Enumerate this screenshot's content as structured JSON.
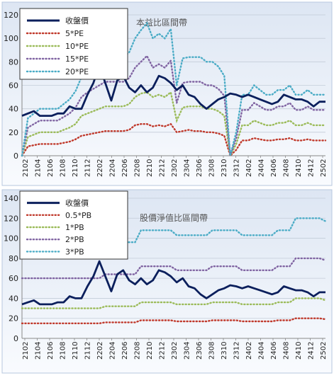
{
  "chart_data": [
    {
      "type": "line",
      "title": "本益比區間帶",
      "xlabel": "",
      "ylabel": "",
      "ylim": [
        0,
        120
      ],
      "ytick_step": 20,
      "legend_placement": "top-left",
      "x_tick_labels": [
        "2102",
        "2104",
        "2106",
        "2108",
        "2110",
        "2112",
        "2202",
        "2204",
        "2206",
        "2208",
        "2210",
        "2212",
        "2302",
        "2304",
        "2306",
        "2308",
        "2310",
        "2312",
        "2402",
        "2404",
        "2406",
        "2408",
        "2410",
        "2412",
        "2502"
      ],
      "series": [
        {
          "name": "收盤價",
          "color": "#0b1f5c",
          "style": "solid",
          "values": [
            34,
            36,
            38,
            34,
            34,
            34,
            36,
            36,
            42,
            40,
            40,
            52,
            62,
            77,
            62,
            47,
            64,
            68,
            58,
            54,
            60,
            54,
            58,
            68,
            66,
            62,
            56,
            60,
            52,
            50,
            44,
            40,
            44,
            48,
            50,
            53,
            52,
            50,
            52,
            50,
            48,
            46,
            44,
            46,
            52,
            50,
            48,
            48,
            46,
            42,
            46,
            46
          ]
        },
        {
          "name": "5*PE",
          "color": "#c0392b",
          "style": "dotted",
          "values": [
            0,
            8,
            9,
            10,
            10,
            10,
            10,
            11,
            12,
            14,
            17,
            18,
            19,
            20,
            21,
            21,
            21,
            21,
            22,
            26,
            27,
            27,
            25,
            26,
            25,
            27,
            20,
            21,
            22,
            21,
            21,
            20,
            20,
            19,
            17,
            0,
            5,
            13,
            13,
            15,
            14,
            13,
            13,
            14,
            14,
            15,
            13,
            13,
            14,
            13,
            13,
            13
          ]
        },
        {
          "name": "10*PE",
          "color": "#9bbb59",
          "style": "dotted",
          "values": [
            0,
            16,
            18,
            20,
            20,
            20,
            20,
            22,
            24,
            27,
            34,
            36,
            38,
            40,
            42,
            42,
            42,
            42,
            44,
            50,
            53,
            54,
            50,
            52,
            50,
            54,
            30,
            41,
            42,
            42,
            42,
            40,
            40,
            38,
            34,
            0,
            10,
            26,
            26,
            30,
            28,
            26,
            26,
            28,
            28,
            30,
            26,
            26,
            28,
            26,
            26,
            26
          ]
        },
        {
          "name": "15*PE",
          "color": "#8064a2",
          "style": "dotted",
          "values": [
            0,
            24,
            27,
            30,
            30,
            30,
            30,
            33,
            36,
            41,
            50,
            54,
            57,
            60,
            63,
            63,
            63,
            63,
            66,
            75,
            80,
            85,
            75,
            78,
            75,
            81,
            45,
            62,
            63,
            63,
            63,
            60,
            60,
            57,
            51,
            0,
            15,
            39,
            39,
            45,
            42,
            39,
            39,
            42,
            42,
            45,
            39,
            39,
            42,
            39,
            39,
            39
          ]
        },
        {
          "name": "20*PE",
          "color": "#4bacc6",
          "style": "dotted",
          "values": [
            0,
            32,
            36,
            40,
            40,
            40,
            40,
            44,
            48,
            55,
            67,
            72,
            76,
            80,
            84,
            84,
            84,
            84,
            88,
            100,
            107,
            113,
            100,
            104,
            100,
            108,
            60,
            83,
            84,
            84,
            84,
            80,
            80,
            76,
            68,
            0,
            20,
            52,
            52,
            60,
            56,
            52,
            52,
            56,
            56,
            60,
            52,
            52,
            56,
            52,
            52,
            52
          ]
        }
      ]
    },
    {
      "type": "line",
      "title": "股價淨值比區間帶",
      "xlabel": "",
      "ylabel": "",
      "ylim": [
        0,
        140
      ],
      "ytick_step": 20,
      "legend_placement": "top-left",
      "x_tick_labels": [
        "2102",
        "2104",
        "2106",
        "2108",
        "2110",
        "2112",
        "2202",
        "2204",
        "2206",
        "2208",
        "2210",
        "2212",
        "2302",
        "2304",
        "2306",
        "2308",
        "2310",
        "2312",
        "2402",
        "2404",
        "2406",
        "2408",
        "2410",
        "2412",
        "2502"
      ],
      "series": [
        {
          "name": "收盤價",
          "color": "#0b1f5c",
          "style": "solid",
          "values": [
            34,
            36,
            38,
            34,
            34,
            34,
            36,
            36,
            42,
            40,
            40,
            52,
            62,
            77,
            62,
            47,
            64,
            68,
            58,
            54,
            60,
            54,
            58,
            68,
            66,
            62,
            56,
            60,
            52,
            50,
            44,
            40,
            44,
            48,
            50,
            53,
            52,
            50,
            52,
            50,
            48,
            46,
            44,
            46,
            52,
            50,
            48,
            48,
            46,
            42,
            46,
            46
          ]
        },
        {
          "name": "0.5*PB",
          "color": "#c0392b",
          "style": "dotted",
          "values": [
            15,
            15,
            15,
            15,
            15,
            15,
            15,
            15,
            15,
            15,
            15,
            15,
            15,
            15,
            16,
            16,
            16,
            16,
            16,
            16,
            18,
            18,
            18,
            18,
            18,
            18,
            17,
            17,
            17,
            17,
            17,
            17,
            18,
            18,
            18,
            18,
            18,
            17,
            17,
            17,
            17,
            17,
            17,
            18,
            18,
            18,
            20,
            20,
            20,
            20,
            20,
            19
          ]
        },
        {
          "name": "1*PB",
          "color": "#9bbb59",
          "style": "dotted",
          "values": [
            30,
            30,
            30,
            30,
            30,
            30,
            30,
            30,
            30,
            30,
            30,
            30,
            30,
            30,
            32,
            32,
            32,
            32,
            32,
            32,
            36,
            36,
            36,
            36,
            36,
            36,
            34,
            34,
            34,
            34,
            34,
            34,
            36,
            36,
            36,
            36,
            36,
            34,
            34,
            34,
            34,
            34,
            34,
            36,
            36,
            36,
            40,
            40,
            40,
            40,
            40,
            38
          ]
        },
        {
          "name": "2*PB",
          "color": "#8064a2",
          "style": "dotted",
          "values": [
            60,
            60,
            60,
            60,
            60,
            60,
            60,
            60,
            60,
            60,
            60,
            60,
            60,
            60,
            64,
            64,
            64,
            64,
            64,
            64,
            72,
            72,
            72,
            72,
            72,
            72,
            68,
            68,
            68,
            68,
            68,
            68,
            72,
            72,
            72,
            72,
            72,
            68,
            68,
            68,
            68,
            68,
            68,
            72,
            72,
            72,
            80,
            80,
            80,
            80,
            80,
            78
          ]
        },
        {
          "name": "3*PB",
          "color": "#4bacc6",
          "style": "dotted",
          "values": [
            90,
            90,
            90,
            90,
            90,
            90,
            90,
            90,
            90,
            90,
            90,
            90,
            90,
            90,
            96,
            96,
            96,
            96,
            96,
            96,
            108,
            108,
            108,
            108,
            108,
            108,
            103,
            103,
            103,
            103,
            103,
            103,
            108,
            108,
            108,
            108,
            108,
            103,
            103,
            103,
            103,
            103,
            103,
            108,
            108,
            108,
            120,
            120,
            120,
            120,
            120,
            117
          ]
        }
      ]
    }
  ]
}
